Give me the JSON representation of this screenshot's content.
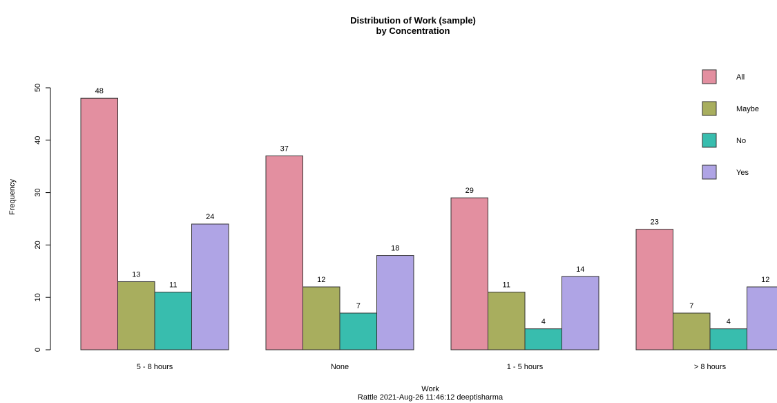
{
  "chart_data": {
    "type": "bar",
    "title": "Distribution of Work (sample)",
    "subtitle": "by Concentration",
    "xlabel": "Work",
    "ylabel": "Frequency",
    "caption": "Rattle 2021-Aug-26 11:46:12 deeptisharma",
    "categories": [
      "5 - 8 hours",
      "None",
      "1 - 5 hours",
      "> 8 hours"
    ],
    "series": [
      {
        "name": "All",
        "values": [
          48,
          37,
          29,
          23
        ],
        "color": "#E38FA0"
      },
      {
        "name": "Maybe",
        "values": [
          13,
          12,
          11,
          7
        ],
        "color": "#A8AE5E"
      },
      {
        "name": "No",
        "values": [
          11,
          7,
          4,
          4
        ],
        "color": "#38BDAE"
      },
      {
        "name": "Yes",
        "values": [
          24,
          18,
          14,
          12
        ],
        "color": "#AFA4E5"
      }
    ],
    "yticks": [
      0,
      10,
      20,
      30,
      40,
      50
    ],
    "ylim": [
      0,
      50
    ],
    "grid": false,
    "legend_position": "top-right"
  }
}
